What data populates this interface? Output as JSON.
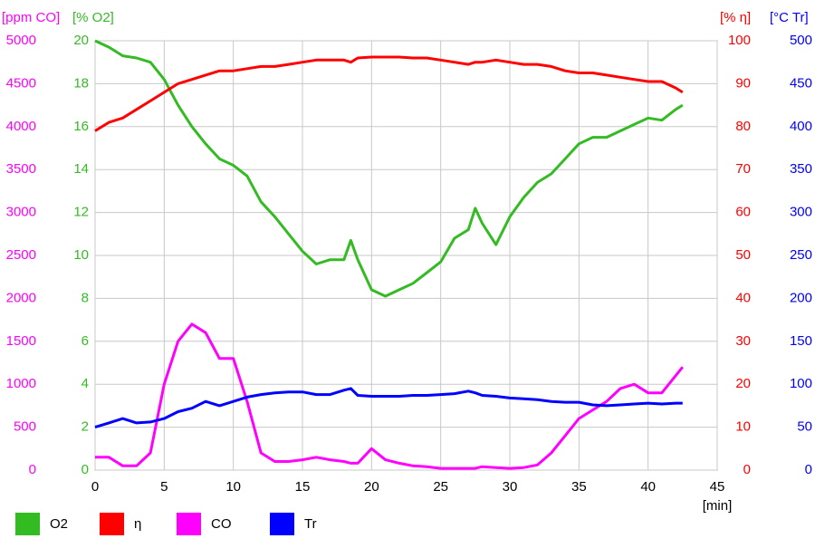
{
  "chart_data": {
    "type": "line",
    "x_label": "[min]",
    "xlim": [
      0,
      45
    ],
    "xticks": [
      0,
      5,
      10,
      15,
      20,
      25,
      30,
      35,
      40,
      45
    ],
    "grid": true,
    "axes": [
      {
        "label": "[ppm CO]",
        "color": "#ff00ff",
        "lim": [
          0,
          5000
        ],
        "ticks": [
          0,
          500,
          1000,
          1500,
          2000,
          2500,
          3000,
          3500,
          4000,
          4500,
          5000
        ],
        "side": "left"
      },
      {
        "label": "[% O2]",
        "color": "#33bb22",
        "lim": [
          0,
          20
        ],
        "ticks": [
          0,
          2,
          4,
          6,
          8,
          10,
          12,
          14,
          16,
          18,
          20
        ],
        "side": "left"
      },
      {
        "label": "[% η]",
        "color": "#ff0000",
        "lim": [
          0,
          100
        ],
        "ticks": [
          0,
          10,
          20,
          30,
          40,
          50,
          60,
          70,
          80,
          90,
          100
        ],
        "side": "right"
      },
      {
        "label": "[°C Tr]",
        "color": "#0000ff",
        "lim": [
          0,
          500
        ],
        "ticks": [
          0,
          50,
          100,
          150,
          200,
          250,
          300,
          350,
          400,
          450,
          500
        ],
        "side": "right"
      }
    ],
    "x": [
      0,
      1,
      2,
      3,
      4,
      5,
      6,
      7,
      8,
      9,
      10,
      11,
      12,
      13,
      14,
      15,
      16,
      17,
      18,
      18.5,
      19,
      20,
      21,
      22,
      23,
      24,
      25,
      26,
      27,
      27.5,
      28,
      29,
      30,
      31,
      32,
      33,
      34,
      35,
      36,
      37,
      38,
      39,
      40,
      41,
      42,
      42.5
    ],
    "series": [
      {
        "name": "O2",
        "color": "#33bb22",
        "axis": 1,
        "values": [
          20,
          19.7,
          19.3,
          19.2,
          19.0,
          18.2,
          17.0,
          16.0,
          15.2,
          14.5,
          14.2,
          13.7,
          12.5,
          11.8,
          11.0,
          10.2,
          9.6,
          9.8,
          9.8,
          10.7,
          9.8,
          8.4,
          8.1,
          8.4,
          8.7,
          9.2,
          9.7,
          10.8,
          11.2,
          12.2,
          11.5,
          10.5,
          11.8,
          12.7,
          13.4,
          13.8,
          14.5,
          15.2,
          15.5,
          15.5,
          15.8,
          16.1,
          16.4,
          16.3,
          16.8,
          17.0
        ]
      },
      {
        "name": "η",
        "color": "#ff0000",
        "axis": 2,
        "values": [
          79,
          81,
          82,
          84,
          86,
          88,
          90,
          91,
          92,
          93,
          93,
          93.5,
          94,
          94,
          94.5,
          95,
          95.5,
          95.5,
          95.5,
          95,
          96,
          96.2,
          96.2,
          96.2,
          96,
          96,
          95.5,
          95,
          94.5,
          95,
          95,
          95.5,
          95,
          94.5,
          94.5,
          94,
          93,
          92.5,
          92.5,
          92,
          91.5,
          91,
          90.5,
          90.5,
          89,
          88
        ]
      },
      {
        "name": "CO",
        "color": "#ff00ff",
        "axis": 0,
        "values": [
          150,
          150,
          50,
          50,
          200,
          1000,
          1500,
          1700,
          1600,
          1300,
          1300,
          800,
          200,
          100,
          100,
          120,
          150,
          120,
          100,
          80,
          80,
          250,
          120,
          80,
          50,
          40,
          20,
          20,
          20,
          20,
          40,
          30,
          20,
          30,
          60,
          200,
          400,
          600,
          700,
          800,
          950,
          1000,
          900,
          900,
          1100,
          1200
        ]
      },
      {
        "name": "Tr",
        "color": "#0000ff",
        "axis": 3,
        "values": [
          50,
          55,
          60,
          55,
          56,
          60,
          68,
          72,
          80,
          75,
          80,
          85,
          88,
          90,
          91,
          91,
          88,
          88,
          93,
          95,
          87,
          86,
          86,
          86,
          87,
          87,
          88,
          89,
          92,
          90,
          87,
          86,
          84,
          83,
          82,
          80,
          79,
          79,
          76,
          75,
          76,
          77,
          78,
          77,
          78,
          78
        ]
      }
    ]
  }
}
